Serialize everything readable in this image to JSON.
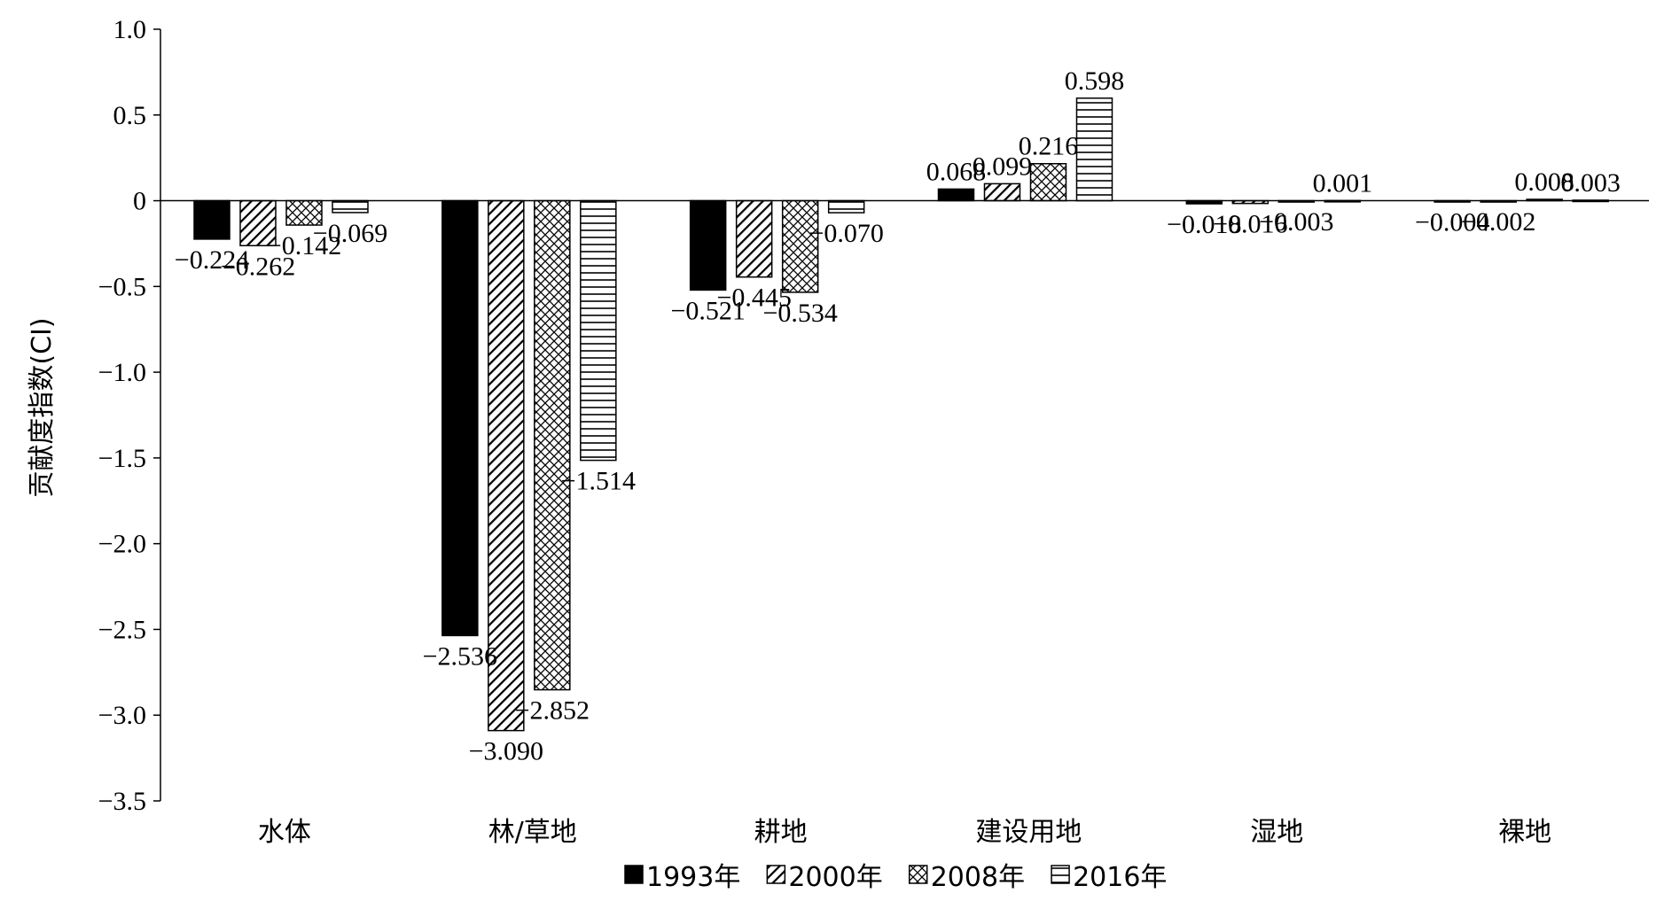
{
  "chart_data": {
    "type": "bar",
    "ylabel": "贡献度指数(CI)",
    "xlabel": "",
    "ylim": [
      -3.5,
      1.0
    ],
    "yticks": [
      1.0,
      0.5,
      0,
      -0.5,
      -1.0,
      -1.5,
      -2.0,
      -2.5,
      -3.0,
      -3.5
    ],
    "ytick_labels": [
      "1.0",
      "0.5",
      "0",
      "-0.5",
      "-1.0",
      "-1.5",
      "-2.0",
      "-2.5",
      "-3.0",
      "-3.5"
    ],
    "categories": [
      "水体",
      "林/草地",
      "耕地",
      "建设用地",
      "湿地",
      "裸地"
    ],
    "series": [
      {
        "name": "1993年",
        "pattern": "solid",
        "values": [
          -0.224,
          -2.536,
          -0.521,
          0.068,
          -0.018,
          -0.004
        ],
        "labels": [
          "-0.224",
          "-2.536",
          "-0.521",
          "0.068",
          "-0.018",
          "-0.004"
        ]
      },
      {
        "name": "2000年",
        "pattern": "diagonal",
        "values": [
          -0.262,
          -3.09,
          -0.445,
          0.099,
          -0.016,
          -0.002
        ],
        "labels": [
          "-0.262",
          "-3.090",
          "-0.445",
          "0.099",
          "-0.016",
          "-0.002"
        ]
      },
      {
        "name": "2008年",
        "pattern": "crosshatch",
        "values": [
          -0.142,
          -2.852,
          -0.534,
          0.216,
          -0.003,
          0.008
        ],
        "labels": [
          "-0.142",
          "-2.852",
          "-0.534",
          "0.216",
          "-0.003",
          "0.008"
        ]
      },
      {
        "name": "2016年",
        "pattern": "horizontal",
        "values": [
          -0.069,
          -1.514,
          -0.07,
          0.598,
          0.001,
          0.003
        ],
        "labels": [
          "-0.069",
          "-1.514",
          "-0.070",
          "0.598",
          "0.001",
          "0.003"
        ]
      }
    ],
    "grid": false,
    "legend_position": "bottom",
    "colors": {
      "bar_fill": "#000000",
      "bar_stroke": "#000000",
      "background": "#ffffff"
    }
  }
}
